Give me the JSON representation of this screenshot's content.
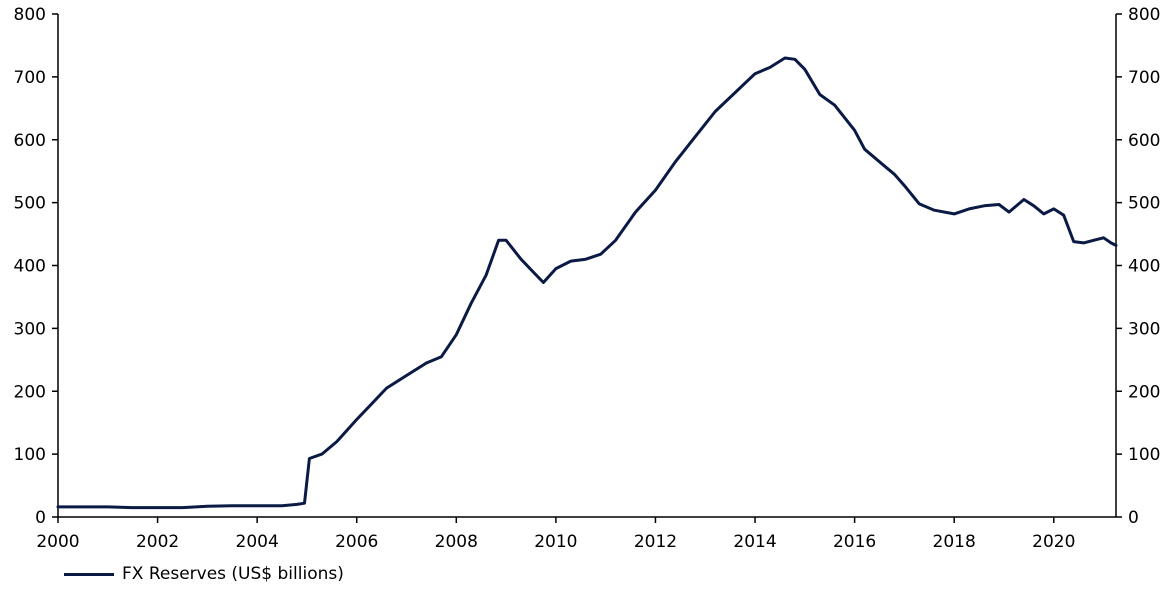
{
  "chart_data": {
    "type": "line",
    "title": "",
    "xlabel": "",
    "ylabel": "",
    "xlim": [
      2000,
      2021.25
    ],
    "ylim": [
      0,
      800
    ],
    "x_ticks": [
      "2000",
      "2002",
      "2004",
      "2006",
      "2008",
      "2010",
      "2012",
      "2014",
      "2016",
      "2018",
      "2020"
    ],
    "y_ticks": [
      "0",
      "100",
      "200",
      "300",
      "400",
      "500",
      "600",
      "700",
      "800"
    ],
    "y_axis_right": true,
    "grid": false,
    "legend_position": "bottom-left",
    "series": [
      {
        "name": "FX Reserves (US$ billions)",
        "color": "#0a1a44",
        "x": [
          2000.0,
          2000.5,
          2001.0,
          2001.5,
          2002.0,
          2002.5,
          2003.0,
          2003.5,
          2004.0,
          2004.5,
          2004.8,
          2004.95,
          2005.05,
          2005.3,
          2005.6,
          2006.0,
          2006.3,
          2006.6,
          2007.0,
          2007.4,
          2007.7,
          2008.0,
          2008.3,
          2008.6,
          2008.85,
          2009.0,
          2009.3,
          2009.6,
          2009.75,
          2010.0,
          2010.3,
          2010.6,
          2010.9,
          2011.2,
          2011.6,
          2012.0,
          2012.4,
          2012.8,
          2013.2,
          2013.6,
          2014.0,
          2014.3,
          2014.6,
          2014.8,
          2015.0,
          2015.3,
          2015.6,
          2016.0,
          2016.2,
          2016.5,
          2016.8,
          2017.0,
          2017.3,
          2017.6,
          2018.0,
          2018.3,
          2018.6,
          2018.9,
          2019.1,
          2019.4,
          2019.6,
          2019.8,
          2020.0,
          2020.2,
          2020.4,
          2020.6,
          2020.8,
          2021.0,
          2021.15,
          2021.25
        ],
        "values": [
          16,
          16,
          16,
          15,
          15,
          15,
          17,
          18,
          18,
          18,
          20,
          22,
          93,
          100,
          120,
          155,
          180,
          205,
          225,
          245,
          255,
          290,
          340,
          385,
          440,
          440,
          410,
          385,
          373,
          395,
          407,
          410,
          418,
          440,
          485,
          520,
          565,
          605,
          645,
          675,
          705,
          715,
          730,
          728,
          712,
          672,
          655,
          615,
          585,
          565,
          545,
          527,
          498,
          488,
          482,
          490,
          495,
          497,
          485,
          505,
          495,
          482,
          490,
          480,
          438,
          436,
          440,
          444,
          436,
          432
        ]
      }
    ]
  }
}
